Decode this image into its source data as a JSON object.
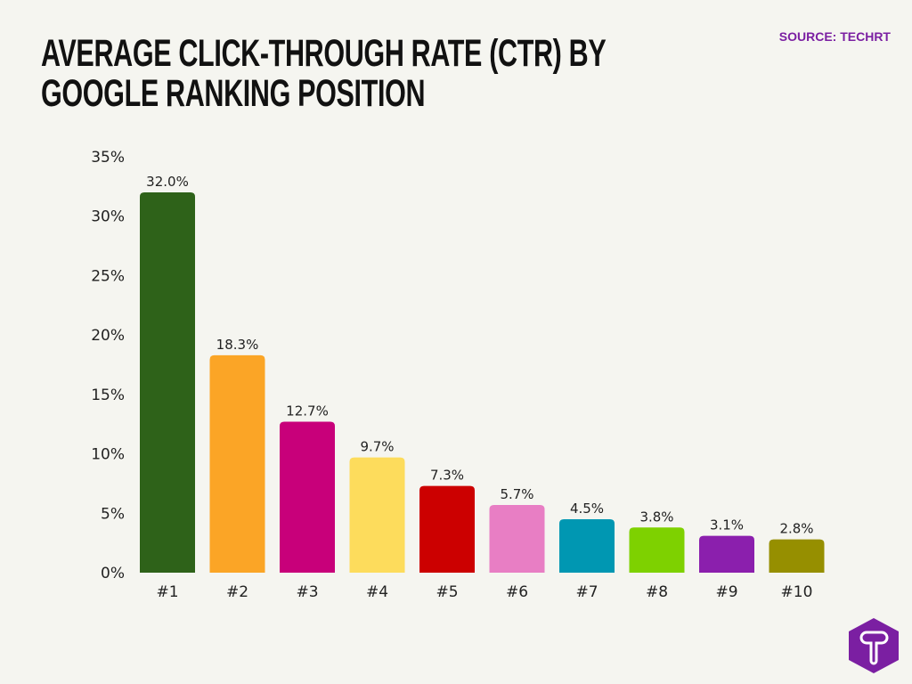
{
  "header": {
    "title_line1": "AVERAGE CLICK-THROUGH RATE (CTR) BY",
    "title_line2": "GOOGLE RANKING POSITION",
    "source": "SOURCE: TECHRT"
  },
  "logo": {
    "icon": "techrt-t-hexagon-logo",
    "text": "T",
    "color": "#7b1fa2"
  },
  "chart_data": {
    "type": "bar",
    "title": "AVERAGE CLICK-THROUGH RATE (CTR) BY GOOGLE RANKING POSITION",
    "xlabel": "",
    "ylabel": "",
    "categories": [
      "#1",
      "#2",
      "#3",
      "#4",
      "#5",
      "#6",
      "#7",
      "#8",
      "#9",
      "#10"
    ],
    "values": [
      32.0,
      18.3,
      12.7,
      9.7,
      7.3,
      5.7,
      4.5,
      3.8,
      3.1,
      2.8
    ],
    "data_labels": [
      "32.0%",
      "18.3%",
      "12.7%",
      "9.7%",
      "7.3%",
      "5.7%",
      "4.5%",
      "3.8%",
      "3.1%",
      "2.8%"
    ],
    "colors": [
      "#2e6219",
      "#fba526",
      "#c8007a",
      "#fddc5c",
      "#cc0000",
      "#e87ec4",
      "#0097b2",
      "#7ed100",
      "#8b1fad",
      "#968f00"
    ],
    "ylim": [
      0,
      35
    ],
    "yticks": [
      0,
      5,
      10,
      15,
      20,
      25,
      30,
      35
    ],
    "ytick_labels": [
      "0%",
      "5%",
      "10%",
      "15%",
      "20%",
      "25%",
      "30%",
      "35%"
    ],
    "grid": false,
    "legend": "none"
  }
}
